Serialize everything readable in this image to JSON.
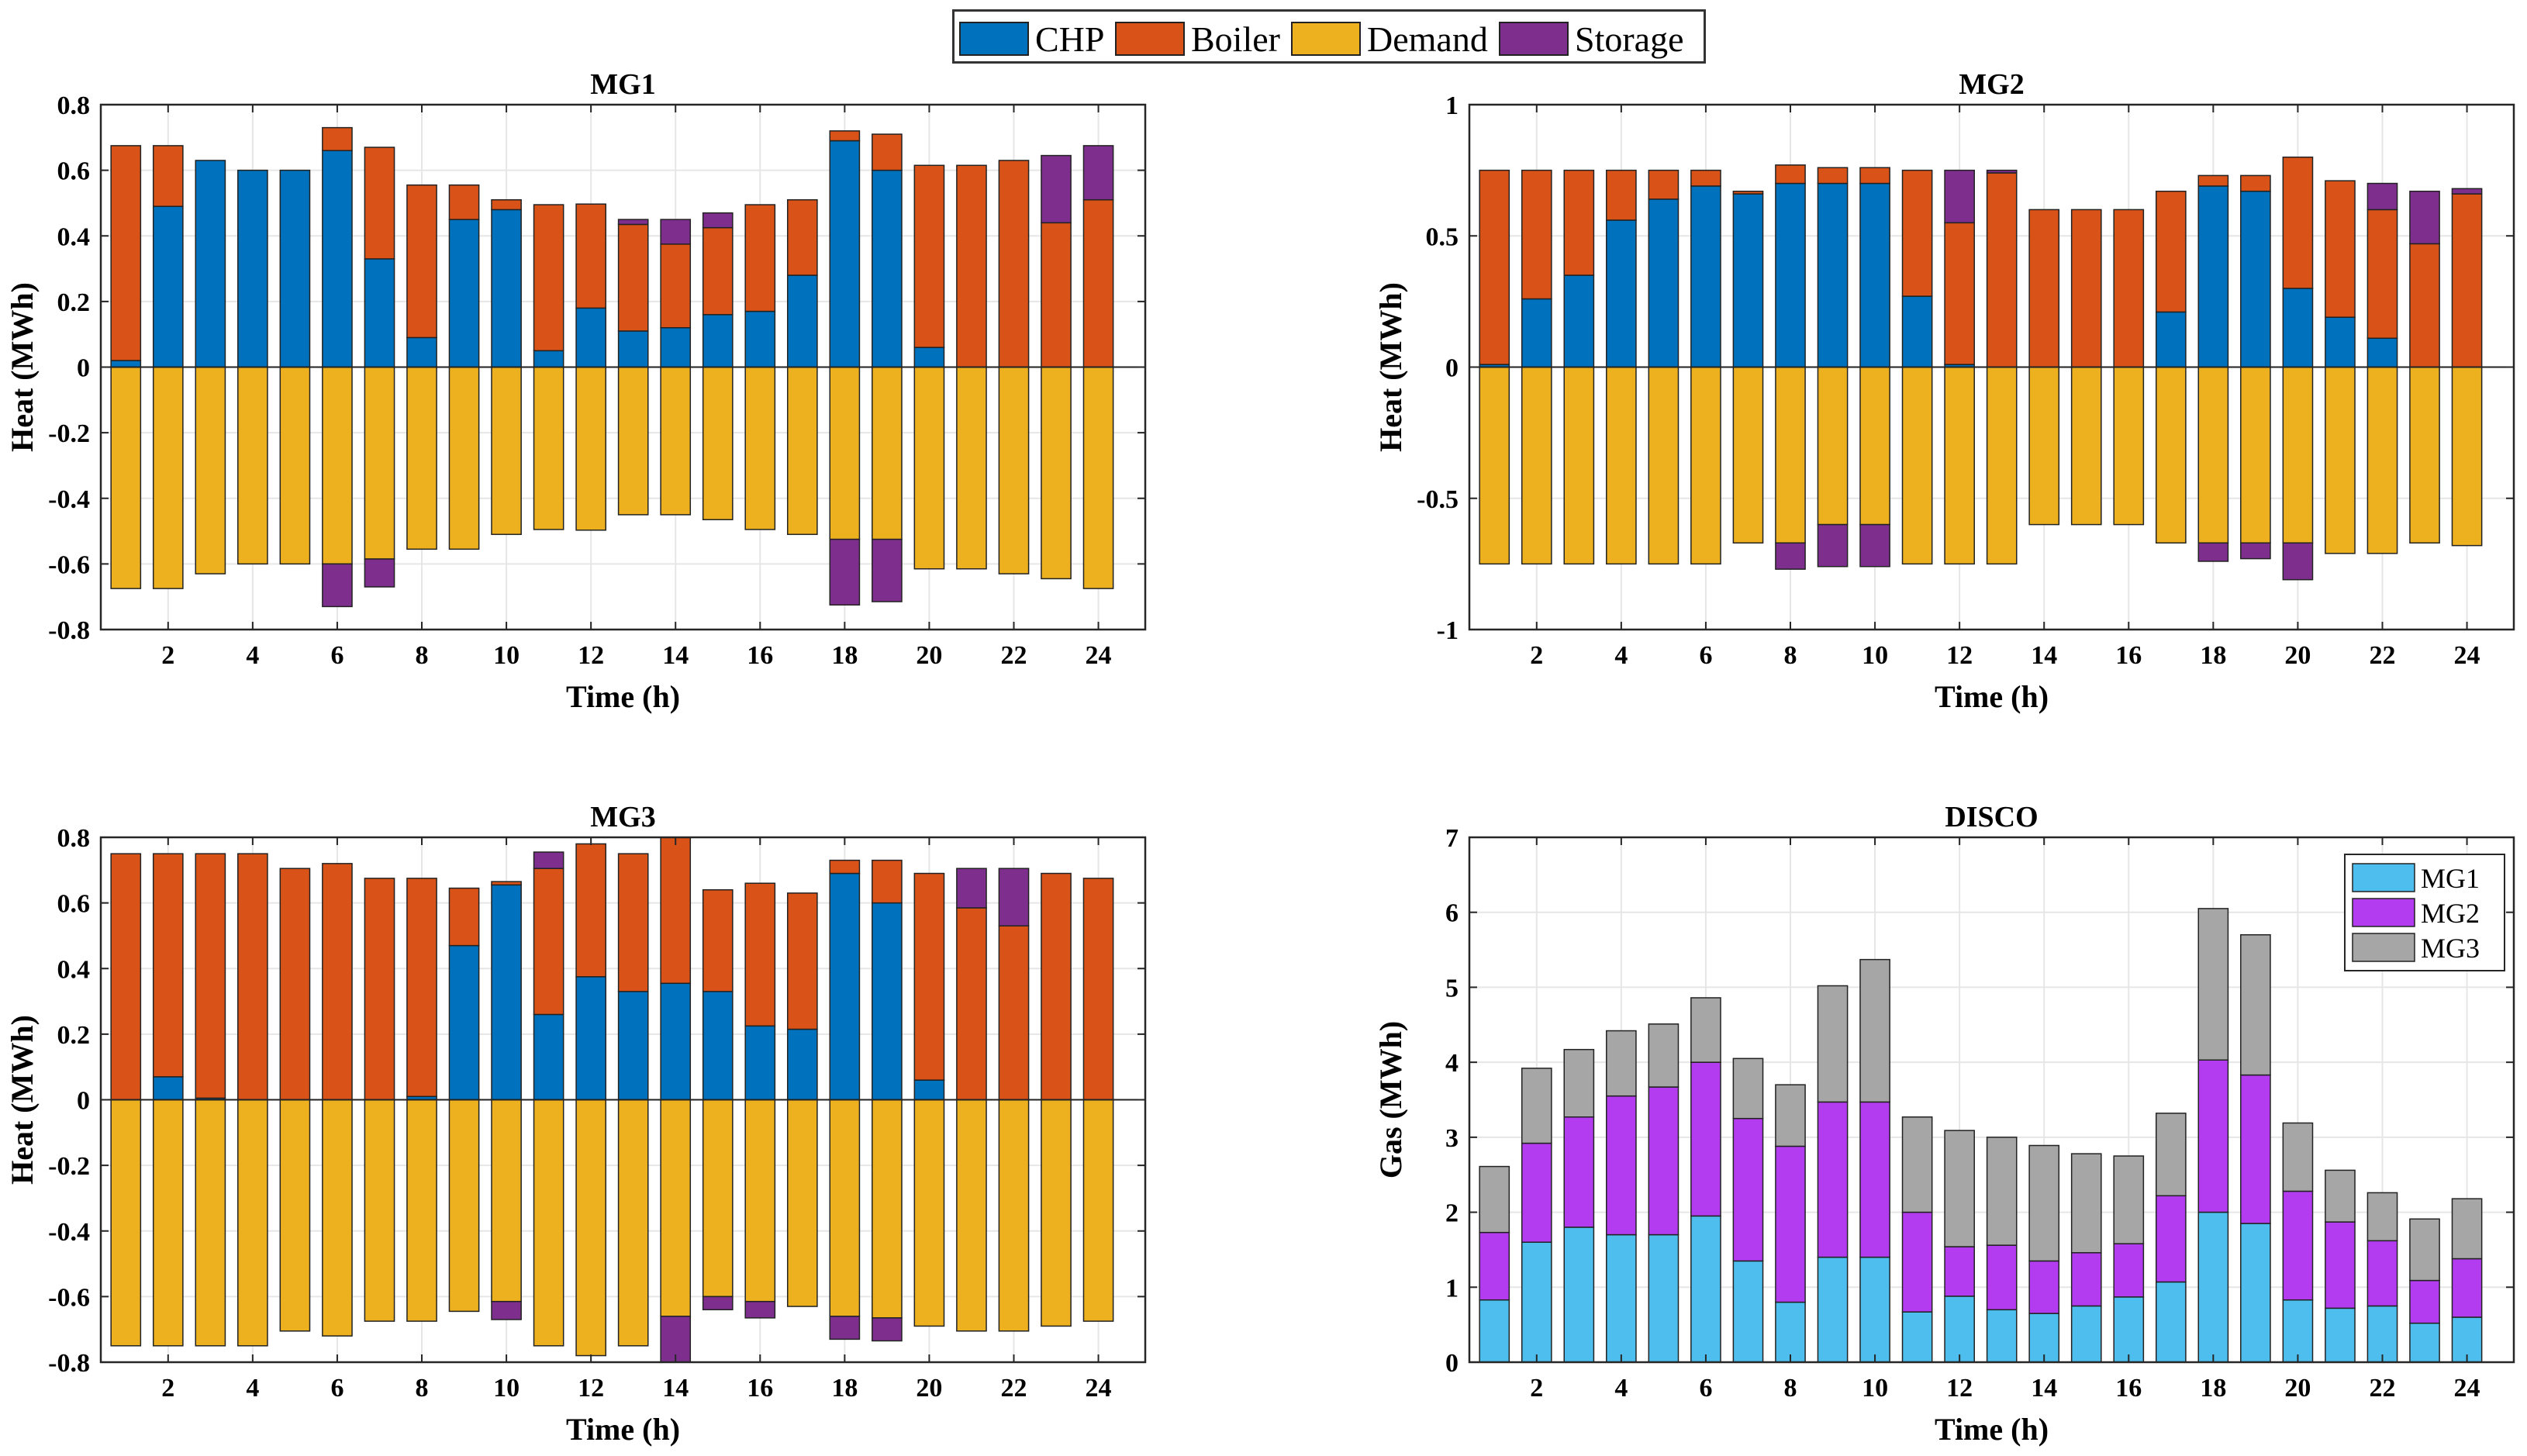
{
  "legend": {
    "items": [
      {
        "label": "CHP",
        "color": "#0072BD"
      },
      {
        "label": "Boiler",
        "color": "#D95319"
      },
      {
        "label": "Demand",
        "color": "#EDB120"
      },
      {
        "label": "Storage",
        "color": "#7E2F8E"
      }
    ]
  },
  "colors": {
    "chp": "#0072BD",
    "boiler": "#D95319",
    "demand": "#EDB120",
    "storage": "#7E2F8E",
    "gas_mg1": "#4DBEEE",
    "gas_mg2": "#B33CF0",
    "gas_mg3": "#A6A6A6"
  },
  "chart_data": [
    {
      "id": "mg1",
      "type": "bar",
      "title": "MG1",
      "xlabel": "Time (h)",
      "ylabel": "Heat (MWh)",
      "ylim": [
        -0.8,
        0.8
      ],
      "yticks": [
        -0.8,
        -0.6,
        -0.4,
        -0.2,
        0,
        0.2,
        0.4,
        0.6,
        0.8
      ],
      "ytick_labels": [
        "-0.8",
        "-0.6",
        "-0.4",
        "-0.2",
        "0",
        "0.2",
        "0.4",
        "0.6",
        "0.8"
      ],
      "x": [
        1,
        2,
        3,
        4,
        5,
        6,
        7,
        8,
        9,
        10,
        11,
        12,
        13,
        14,
        15,
        16,
        17,
        18,
        19,
        20,
        21,
        22,
        23,
        24
      ],
      "xticks": [
        2,
        4,
        6,
        8,
        10,
        12,
        14,
        16,
        18,
        20,
        22,
        24
      ],
      "positive": [
        {
          "name": "CHP",
          "key": "chp",
          "values": [
            0.02,
            0.49,
            0.63,
            0.6,
            0.6,
            0.66,
            0.33,
            0.09,
            0.45,
            0.48,
            0.05,
            0.18,
            0.11,
            0.12,
            0.16,
            0.17,
            0.28,
            0.69,
            0.6,
            0.06,
            0,
            0,
            0,
            0
          ]
        },
        {
          "name": "Boiler",
          "key": "boiler",
          "values": [
            0.655,
            0.185,
            0,
            0,
            0,
            0.07,
            0.34,
            0.465,
            0.105,
            0.03,
            0.445,
            0.317,
            0.325,
            0.255,
            0.265,
            0.325,
            0.23,
            0.03,
            0.11,
            0.555,
            0.615,
            0.63,
            0.44,
            0.51
          ]
        },
        {
          "name": "Storage",
          "key": "storage",
          "values": [
            0,
            0,
            0,
            0,
            0,
            0,
            0,
            0,
            0,
            0,
            0,
            0,
            0.015,
            0.075,
            0.045,
            0,
            0,
            0,
            0,
            0,
            0,
            0,
            0.205,
            0.165
          ]
        }
      ],
      "negative": [
        {
          "name": "Demand",
          "key": "demand",
          "values": [
            0.675,
            0.675,
            0.63,
            0.6,
            0.6,
            0.6,
            0.585,
            0.555,
            0.555,
            0.51,
            0.495,
            0.497,
            0.45,
            0.45,
            0.465,
            0.495,
            0.51,
            0.525,
            0.525,
            0.615,
            0.615,
            0.63,
            0.645,
            0.675
          ]
        },
        {
          "name": "Storage",
          "key": "storage",
          "values": [
            0,
            0,
            0,
            0,
            0,
            0.13,
            0.085,
            0,
            0,
            0,
            0,
            0,
            0,
            0,
            0,
            0,
            0,
            0.2,
            0.19,
            0,
            0,
            0,
            0,
            0
          ]
        }
      ]
    },
    {
      "id": "mg2",
      "type": "bar",
      "title": "MG2",
      "xlabel": "Time (h)",
      "ylabel": "Heat (MWh)",
      "ylim": [
        -1,
        1
      ],
      "yticks": [
        -1,
        -0.5,
        0,
        0.5,
        1
      ],
      "ytick_labels": [
        "-1",
        "-0.5",
        "0",
        "0.5",
        "1"
      ],
      "x": [
        1,
        2,
        3,
        4,
        5,
        6,
        7,
        8,
        9,
        10,
        11,
        12,
        13,
        14,
        15,
        16,
        17,
        18,
        19,
        20,
        21,
        22,
        23,
        24
      ],
      "xticks": [
        2,
        4,
        6,
        8,
        10,
        12,
        14,
        16,
        18,
        20,
        22,
        24
      ],
      "positive": [
        {
          "name": "CHP",
          "key": "chp",
          "values": [
            0.01,
            0.26,
            0.35,
            0.56,
            0.64,
            0.69,
            0.66,
            0.7,
            0.7,
            0.7,
            0.27,
            0.01,
            0,
            0,
            0,
            0,
            0.21,
            0.69,
            0.67,
            0.3,
            0.19,
            0.11,
            0,
            0
          ]
        },
        {
          "name": "Boiler",
          "key": "boiler",
          "values": [
            0.74,
            0.49,
            0.4,
            0.19,
            0.11,
            0.06,
            0.01,
            0.07,
            0.06,
            0.06,
            0.48,
            0.54,
            0.74,
            0.6,
            0.6,
            0.6,
            0.46,
            0.04,
            0.06,
            0.5,
            0.52,
            0.49,
            0.47,
            0.66
          ]
        },
        {
          "name": "Storage",
          "key": "storage",
          "values": [
            0,
            0,
            0,
            0,
            0,
            0,
            0,
            0,
            0,
            0,
            0,
            0.2,
            0.01,
            0,
            0,
            0,
            0,
            0,
            0,
            0,
            0,
            0.1,
            0.2,
            0.02
          ]
        }
      ],
      "negative": [
        {
          "name": "Demand",
          "key": "demand",
          "values": [
            0.75,
            0.75,
            0.75,
            0.75,
            0.75,
            0.75,
            0.67,
            0.67,
            0.6,
            0.6,
            0.75,
            0.75,
            0.75,
            0.6,
            0.6,
            0.6,
            0.67,
            0.67,
            0.67,
            0.67,
            0.71,
            0.71,
            0.67,
            0.68
          ]
        },
        {
          "name": "Storage",
          "key": "storage",
          "values": [
            0,
            0,
            0,
            0,
            0,
            0,
            0,
            0.1,
            0.16,
            0.16,
            0,
            0,
            0,
            0,
            0,
            0,
            0,
            0.07,
            0.06,
            0.14,
            0,
            0,
            0,
            0
          ]
        }
      ]
    },
    {
      "id": "mg3",
      "type": "bar",
      "title": "MG3",
      "xlabel": "Time (h)",
      "ylabel": "Heat (MWh)",
      "ylim": [
        -0.8,
        0.8
      ],
      "yticks": [
        -0.8,
        -0.6,
        -0.4,
        -0.2,
        0,
        0.2,
        0.4,
        0.6,
        0.8
      ],
      "ytick_labels": [
        "-0.8",
        "-0.6",
        "-0.4",
        "-0.2",
        "0",
        "0.2",
        "0.4",
        "0.6",
        "0.8"
      ],
      "x": [
        1,
        2,
        3,
        4,
        5,
        6,
        7,
        8,
        9,
        10,
        11,
        12,
        13,
        14,
        15,
        16,
        17,
        18,
        19,
        20,
        21,
        22,
        23,
        24
      ],
      "xticks": [
        2,
        4,
        6,
        8,
        10,
        12,
        14,
        16,
        18,
        20,
        22,
        24
      ],
      "positive": [
        {
          "name": "CHP",
          "key": "chp",
          "values": [
            0,
            0.07,
            0.005,
            0,
            0,
            0,
            0,
            0.01,
            0.47,
            0.655,
            0.26,
            0.375,
            0.33,
            0.355,
            0.33,
            0.225,
            0.215,
            0.69,
            0.6,
            0.06,
            0,
            0,
            0,
            0
          ]
        },
        {
          "name": "Boiler",
          "key": "boiler",
          "values": [
            0.75,
            0.68,
            0.745,
            0.75,
            0.705,
            0.72,
            0.675,
            0.665,
            0.175,
            0.01,
            0.445,
            0.405,
            0.42,
            0.445,
            0.31,
            0.435,
            0.415,
            0.04,
            0.13,
            0.63,
            0.585,
            0.53,
            0.69,
            0.675
          ]
        },
        {
          "name": "Storage",
          "key": "storage",
          "values": [
            0,
            0,
            0,
            0,
            0,
            0,
            0,
            0,
            0,
            0,
            0.05,
            0,
            0,
            0,
            0,
            0,
            0,
            0,
            0,
            0,
            0.12,
            0.175,
            0,
            0
          ]
        }
      ],
      "negative": [
        {
          "name": "Demand",
          "key": "demand",
          "values": [
            0.75,
            0.75,
            0.75,
            0.75,
            0.705,
            0.72,
            0.675,
            0.675,
            0.645,
            0.615,
            0.75,
            0.78,
            0.75,
            0.66,
            0.6,
            0.615,
            0.63,
            0.66,
            0.665,
            0.69,
            0.705,
            0.705,
            0.69,
            0.675
          ]
        },
        {
          "name": "Storage",
          "key": "storage",
          "values": [
            0,
            0,
            0,
            0,
            0,
            0,
            0,
            0,
            0,
            0.055,
            0,
            0,
            0,
            0.14,
            0.04,
            0.05,
            0,
            0.07,
            0.07,
            0,
            0,
            0,
            0,
            0
          ]
        }
      ]
    },
    {
      "id": "disco",
      "type": "bar",
      "stacked": true,
      "title": "DISCO",
      "xlabel": "Time (h)",
      "ylabel": "Gas (MWh)",
      "ylim": [
        0,
        7
      ],
      "yticks": [
        0,
        1,
        2,
        3,
        4,
        5,
        6,
        7
      ],
      "ytick_labels": [
        "0",
        "1",
        "2",
        "3",
        "4",
        "5",
        "6",
        "7"
      ],
      "x": [
        1,
        2,
        3,
        4,
        5,
        6,
        7,
        8,
        9,
        10,
        11,
        12,
        13,
        14,
        15,
        16,
        17,
        18,
        19,
        20,
        21,
        22,
        23,
        24
      ],
      "xticks": [
        2,
        4,
        6,
        8,
        10,
        12,
        14,
        16,
        18,
        20,
        22,
        24
      ],
      "legend_position": "top-right",
      "series": [
        {
          "name": "MG1",
          "key": "gas_mg1",
          "values": [
            0.83,
            1.6,
            1.8,
            1.7,
            1.7,
            1.95,
            1.35,
            0.8,
            1.4,
            1.4,
            0.67,
            0.88,
            0.7,
            0.65,
            0.75,
            0.87,
            1.07,
            2.0,
            1.85,
            0.83,
            0.72,
            0.75,
            0.52,
            0.6
          ]
        },
        {
          "name": "MG2",
          "key": "gas_mg2",
          "values": [
            0.9,
            1.32,
            1.47,
            1.85,
            1.97,
            2.05,
            1.9,
            2.08,
            2.07,
            2.07,
            1.33,
            0.66,
            0.86,
            0.7,
            0.71,
            0.71,
            1.15,
            2.03,
            1.98,
            1.45,
            1.15,
            0.87,
            0.57,
            0.78
          ]
        },
        {
          "name": "MG3",
          "key": "gas_mg3",
          "values": [
            0.88,
            1.0,
            0.9,
            0.87,
            0.84,
            0.86,
            0.8,
            0.82,
            1.55,
            1.9,
            1.27,
            1.55,
            1.44,
            1.54,
            1.32,
            1.17,
            1.1,
            2.02,
            1.87,
            0.91,
            0.69,
            0.64,
            0.82,
            0.8
          ]
        }
      ]
    }
  ]
}
